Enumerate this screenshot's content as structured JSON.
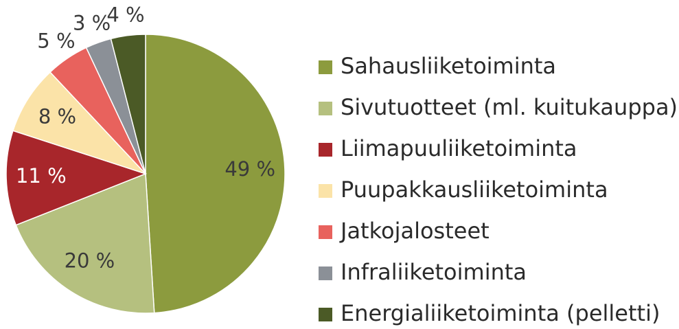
{
  "chart_data": {
    "type": "pie",
    "categories": [
      "Sahausliiketoiminta",
      "Sivutuotteet (ml. kuitukauppa)",
      "Liimapuuliiketoiminta",
      "Puupakkausliiketoiminta",
      "Jatkojalosteet",
      "Infraliiketoiminta",
      "Energialiiketoiminta (pelletti)"
    ],
    "values": [
      49,
      20,
      11,
      8,
      5,
      3,
      4
    ],
    "value_labels": [
      "49 %",
      "20 %",
      "11 %",
      "8 %",
      "5 %",
      "3 %",
      "4 %"
    ],
    "colors": [
      "#8c9b3e",
      "#b5c07f",
      "#a8262b",
      "#fbe3a8",
      "#e8625d",
      "#8b9097",
      "#4b5a26"
    ],
    "legend": "right"
  }
}
